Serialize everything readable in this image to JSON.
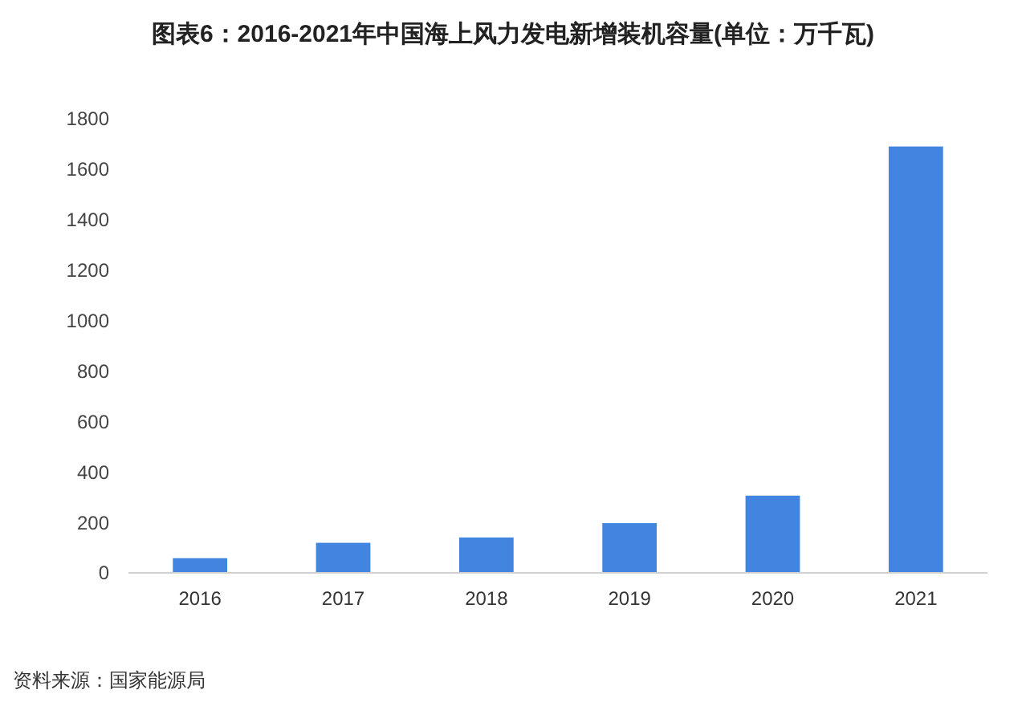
{
  "chart_data": {
    "type": "bar",
    "title": "图表6：2016-2021年中国海上风力发电新增装机容量(单位：万千瓦)",
    "categories": [
      "2016",
      "2017",
      "2018",
      "2019",
      "2020",
      "2021"
    ],
    "values": [
      58,
      119,
      140,
      197,
      306,
      1690
    ],
    "color": "#4285e0",
    "ylim": [
      0,
      1800
    ],
    "yticks": [
      0,
      200,
      400,
      600,
      800,
      1000,
      1200,
      1400,
      1600,
      1800
    ],
    "grid": false,
    "annotations": [
      "资料来源：国家能源局"
    ]
  }
}
